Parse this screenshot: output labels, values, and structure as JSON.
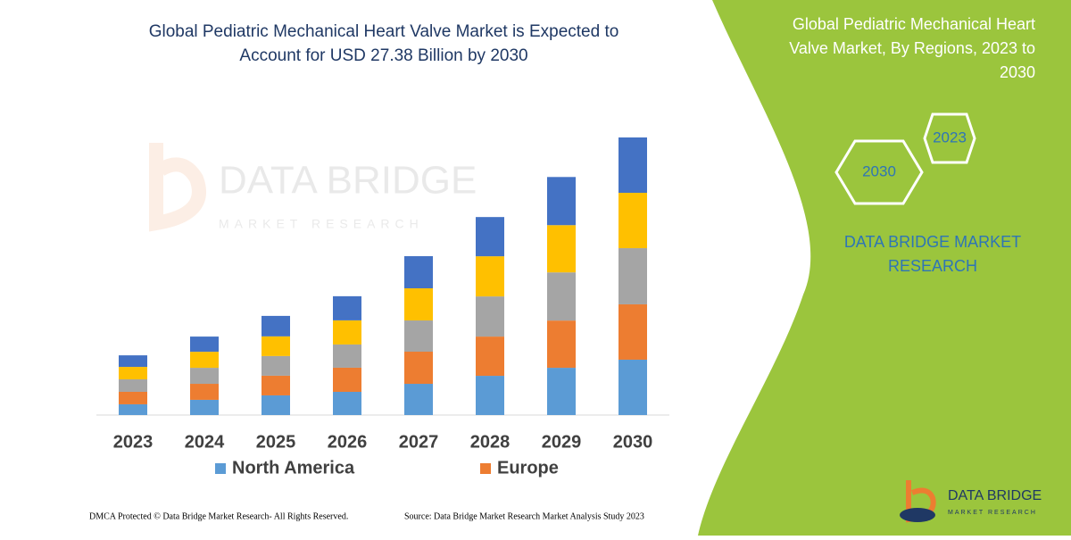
{
  "chart_data": {
    "type": "stacked_bar",
    "title": [
      "Global Pediatric Mechanical Heart Valve Market is Expected to",
      "Account for USD 27.38 Billion by 2030"
    ],
    "categories": [
      "2023",
      "2024",
      "2025",
      "2026",
      "2027",
      "2028",
      "2029",
      "2030"
    ],
    "series": [
      {
        "name": "North America",
        "color": "#5b9bd5",
        "values": [
          1.06,
          1.5,
          1.94,
          2.29,
          3.08,
          3.87,
          4.66,
          5.46
        ]
      },
      {
        "name": "Europe",
        "color": "#ed7d31",
        "values": [
          1.23,
          1.58,
          1.94,
          2.38,
          3.17,
          3.87,
          4.66,
          5.46
        ]
      },
      {
        "name": null,
        "color": "#a5a5a5",
        "values": [
          1.23,
          1.58,
          1.94,
          2.29,
          3.08,
          3.96,
          4.75,
          5.54
        ]
      },
      {
        "name": null,
        "color": "#ffc000",
        "values": [
          1.23,
          1.58,
          1.94,
          2.38,
          3.17,
          3.96,
          4.66,
          5.46
        ]
      },
      {
        "name": null,
        "color": "#4472c4",
        "values": [
          1.14,
          1.5,
          2.02,
          2.38,
          3.17,
          3.87,
          4.75,
          5.46
        ]
      }
    ]
  },
  "watermark": {
    "name": "DATA BRIDGE",
    "tagline": "MARKET RESEARCH"
  },
  "panel": {
    "title": [
      "Global Pediatric Mechanical Heart",
      "Valve Market, By Regions, 2023 to",
      "2030"
    ],
    "hexagons": [
      "2023",
      "2030"
    ],
    "brand": [
      "DATA BRIDGE MARKET",
      "RESEARCH"
    ]
  },
  "footer": {
    "copyright": "DMCA Protected © Data Bridge Market Research- All Rights Reserved.",
    "source": "Source: Data Bridge Market Research  Market Analysis Study 2023"
  },
  "logo": {
    "name": "DATA BRIDGE",
    "tagline": "MARKET RESEARCH"
  }
}
